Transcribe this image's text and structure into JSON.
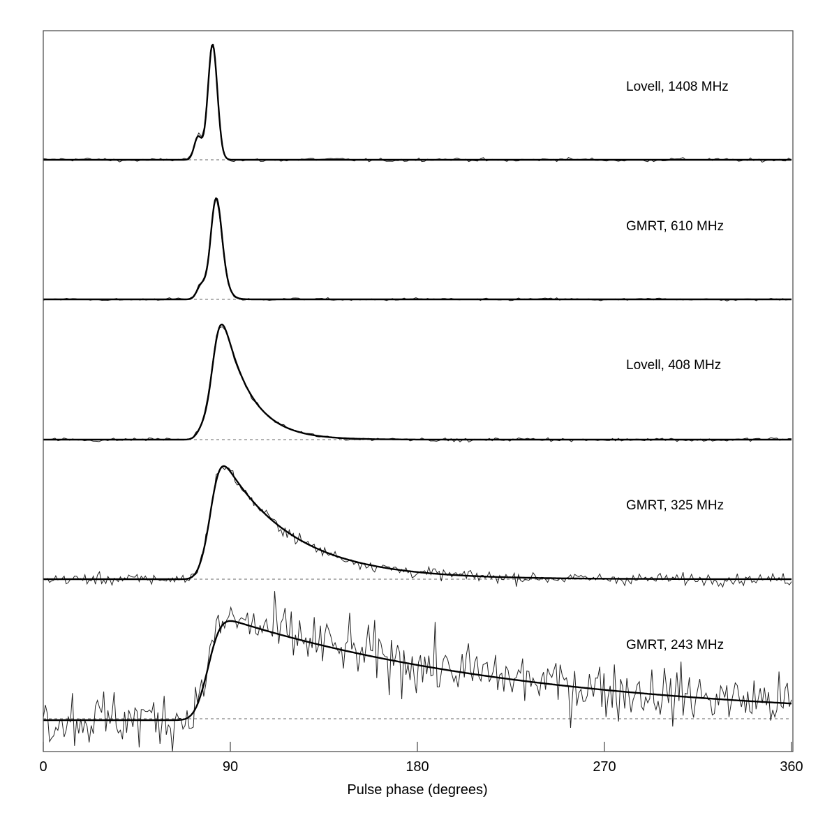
{
  "chart_data": {
    "type": "line",
    "title": "",
    "xlabel": "Pulse phase (degrees)",
    "ylabel": "",
    "xlim": [
      0,
      360
    ],
    "x_ticks": [
      0,
      90,
      180,
      270,
      360
    ],
    "x_tick_labels": [
      "0",
      "90",
      "180",
      "270",
      "360"
    ],
    "grid": false,
    "legend": "none; each stacked panel carries a text label at upper right",
    "layout": "5 vertically stacked profiles sharing one x-axis; each panel shows a thin noisy observed profile, a thick fitted scattering-model curve, and a dashed zero baseline",
    "panels": [
      {
        "label": "Lovell, 1408 MHz",
        "telescope": "Lovell",
        "frequency_mhz": 1408,
        "peak_phase_deg": 81,
        "precursor_phase_deg": 74,
        "precursor_rel_amplitude": 0.2,
        "pulse_width_deg": 2.2,
        "scattering_tail_deg": 0.6,
        "noise_rel": 0.012,
        "peak_rel_height": 1.0
      },
      {
        "label": "GMRT, 610 MHz",
        "telescope": "GMRT",
        "frequency_mhz": 610,
        "peak_phase_deg": 82,
        "precursor_phase_deg": 75,
        "precursor_rel_amplitude": 0.15,
        "pulse_width_deg": 2.4,
        "scattering_tail_deg": 1.8,
        "noise_rel": 0.01,
        "peak_rel_height": 1.0
      },
      {
        "label": "Lovell, 408 MHz",
        "telescope": "Lovell",
        "frequency_mhz": 408,
        "peak_phase_deg": 82,
        "precursor_phase_deg": 75,
        "precursor_rel_amplitude": 0.15,
        "pulse_width_deg": 3.0,
        "scattering_tail_deg": 13,
        "noise_rel": 0.012,
        "peak_rel_height": 1.0
      },
      {
        "label": "GMRT, 325 MHz",
        "telescope": "GMRT",
        "frequency_mhz": 325,
        "peak_phase_deg": 81,
        "precursor_phase_deg": 75,
        "precursor_rel_amplitude": 0.15,
        "pulse_width_deg": 3.5,
        "scattering_tail_deg": 33,
        "noise_rel": 0.04,
        "peak_rel_height": 1.0
      },
      {
        "label": "GMRT, 243 MHz",
        "telescope": "GMRT",
        "frequency_mhz": 243,
        "peak_phase_deg": 80,
        "precursor_phase_deg": 74,
        "precursor_rel_amplitude": 0.15,
        "pulse_width_deg": 4.5,
        "scattering_tail_deg": 150,
        "noise_rel": 0.22,
        "peak_rel_height": 0.98
      }
    ]
  },
  "figure": {
    "x_axis_label": "Pulse phase (degrees)",
    "tick_labels": [
      "0",
      "90",
      "180",
      "270",
      "360"
    ],
    "panel_labels": [
      "Lovell, 1408 MHz",
      "GMRT, 610 MHz",
      "Lovell, 408 MHz",
      "GMRT, 325 MHz",
      "GMRT, 243 MHz"
    ],
    "colors": {
      "frame": "#444444",
      "data_line": "#222222",
      "model_line": "#000000",
      "baseline": "#666666",
      "background": "#ffffff"
    }
  }
}
